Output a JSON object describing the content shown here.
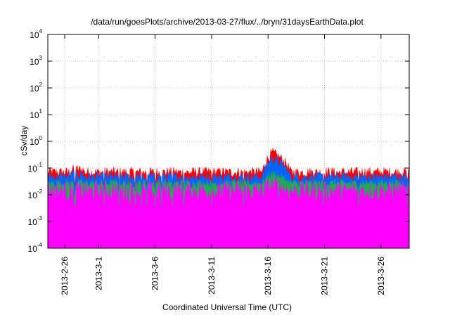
{
  "chart_data": {
    "type": "area",
    "title": "/data/run/goesPlots/archive/2013-03-27/flux/../bryn/31daysEarthData.plot",
    "xlabel": "Coordinated Universal Time (UTC)",
    "ylabel": "cSv/day",
    "yscale": "log",
    "ylim": [
      0.0001,
      10000
    ],
    "xlim": [
      "2013-02-24",
      "2013-03-28"
    ],
    "grid": true,
    "y_ticks": [
      {
        "base": "10",
        "exp": "-4"
      },
      {
        "base": "10",
        "exp": "-3"
      },
      {
        "base": "10",
        "exp": "-2"
      },
      {
        "base": "10",
        "exp": "-1"
      },
      {
        "base": "10",
        "exp": "0"
      },
      {
        "base": "10",
        "exp": "1"
      },
      {
        "base": "10",
        "exp": "2"
      },
      {
        "base": "10",
        "exp": "3"
      },
      {
        "base": "10",
        "exp": "4"
      }
    ],
    "x_ticks": [
      "2013-2-26",
      "2013-3-1",
      "2013-3-6",
      "2013-3-11",
      "2013-3-16",
      "2013-3-21",
      "2013-3-26"
    ],
    "x_tick_days": [
      1.5,
      4.5,
      9.5,
      14.5,
      19.5,
      24.5,
      29.5
    ],
    "series": [
      {
        "color": "#ff0000",
        "base": 0.068,
        "noise": 0.45,
        "storm_peak": 0.36
      },
      {
        "color": "#0066ff",
        "base": 0.045,
        "noise": 0.45,
        "storm_peak": 0.22
      },
      {
        "color": "#22aa55",
        "base": 0.026,
        "noise": 0.35,
        "storm_peak": 0.06
      },
      {
        "color": "#ff00ff",
        "base": 0.013,
        "noise": 0.9,
        "storm_peak": 0.02
      }
    ],
    "storm": {
      "start_day": 19.0,
      "peak_day": 19.9,
      "end_day": 21.5
    },
    "dropouts_days": [
      2.4,
      5.0,
      6.3,
      7.2,
      7.7,
      8.3,
      8.8,
      9.5,
      10.1,
      11.0,
      12.0,
      14.5,
      17.3,
      24.4,
      27.5,
      31.8
    ]
  }
}
